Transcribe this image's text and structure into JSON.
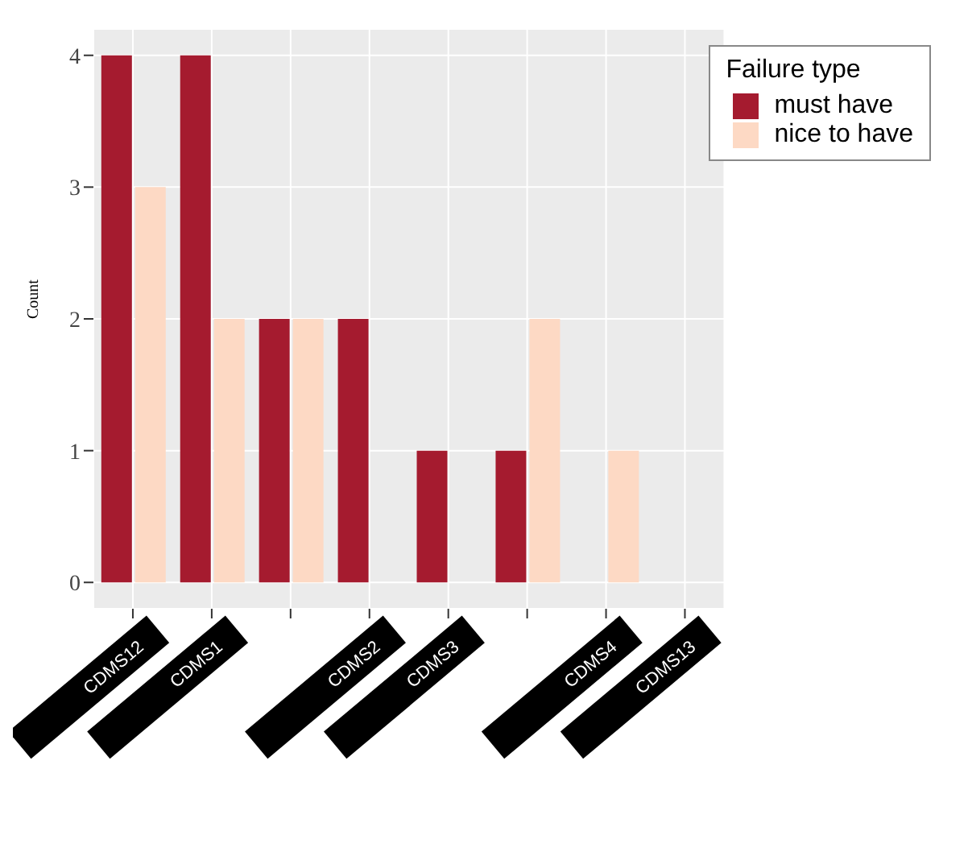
{
  "chart_data": {
    "type": "bar",
    "ylabel": "Count",
    "legend_title": "Failure type",
    "categories": [
      "CDMS12",
      "CDMS1",
      null,
      "CDMS2",
      "CDMS3",
      null,
      "CDMS4",
      "CDMS13"
    ],
    "series": [
      {
        "name": "must have",
        "color": "#a51b2f",
        "values": [
          4,
          4,
          2,
          2,
          1,
          1,
          0,
          0
        ]
      },
      {
        "name": "nice to have",
        "color": "#fdd9c4",
        "values": [
          3,
          2,
          2,
          0,
          0,
          2,
          1,
          0
        ]
      }
    ],
    "ylim": [
      -0.2,
      4.2
    ],
    "yticks": [
      0,
      1,
      2,
      3,
      4
    ],
    "grid": true,
    "legend": "top right"
  }
}
